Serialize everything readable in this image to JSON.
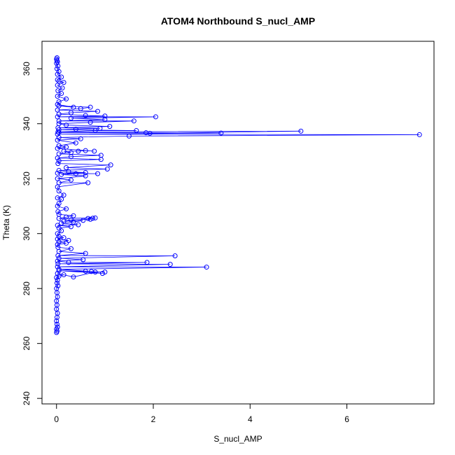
{
  "chart_data": {
    "type": "line",
    "title": "ATOM4 Northbound S_nucl_AMP",
    "xlabel": "S_nucl_AMP",
    "ylabel": "Theta (K)",
    "xlim": [
      -0.3,
      7.8
    ],
    "ylim": [
      238,
      370
    ],
    "x_ticks": [
      0,
      2,
      4,
      6
    ],
    "y_ticks": [
      240,
      260,
      280,
      300,
      320,
      340,
      360
    ],
    "grid": false,
    "legend": "none",
    "marker": "open-circle",
    "color": "#0000ff",
    "series": [
      {
        "points": [
          [
            0.0,
            264.0
          ],
          [
            0.01,
            264.5
          ],
          [
            0.0,
            265.2
          ],
          [
            0.02,
            266.0
          ],
          [
            0.01,
            267.0
          ],
          [
            0.0,
            268.2
          ],
          [
            0.01,
            269.5
          ],
          [
            0.02,
            271.0
          ],
          [
            0.0,
            272.5
          ],
          [
            0.01,
            274.0
          ],
          [
            0.0,
            275.5
          ],
          [
            0.02,
            277.0
          ],
          [
            0.01,
            278.5
          ],
          [
            0.0,
            280.0
          ],
          [
            0.03,
            281.0
          ],
          [
            0.01,
            282.0
          ],
          [
            0.02,
            283.0
          ],
          [
            0.0,
            284.0
          ],
          [
            0.05,
            284.5
          ],
          [
            0.15,
            285.0
          ],
          [
            0.02,
            285.5
          ],
          [
            0.35,
            284.2
          ],
          [
            0.8,
            286.0
          ],
          [
            0.6,
            286.3
          ],
          [
            0.95,
            285.5
          ],
          [
            0.05,
            286.5
          ],
          [
            1.0,
            286.0
          ],
          [
            0.72,
            286.2
          ],
          [
            0.05,
            287.0
          ],
          [
            3.1,
            287.8
          ],
          [
            0.02,
            287.9
          ],
          [
            2.35,
            288.8
          ],
          [
            0.03,
            289.0
          ],
          [
            1.87,
            289.5
          ],
          [
            0.25,
            289.5
          ],
          [
            0.02,
            290.0
          ],
          [
            0.55,
            290.5
          ],
          [
            0.05,
            291.0
          ],
          [
            2.45,
            291.9
          ],
          [
            0.03,
            292.0
          ],
          [
            0.6,
            292.8
          ],
          [
            0.05,
            293.5
          ],
          [
            0.3,
            294.5
          ],
          [
            0.03,
            295.0
          ],
          [
            0.02,
            296.0
          ],
          [
            0.2,
            296.5
          ],
          [
            0.05,
            297.0
          ],
          [
            0.25,
            297.5
          ],
          [
            0.02,
            298.0
          ],
          [
            0.15,
            298.5
          ],
          [
            0.05,
            299.0
          ],
          [
            0.02,
            300.0
          ],
          [
            0.1,
            301.0
          ],
          [
            0.05,
            302.0
          ],
          [
            0.3,
            302.5
          ],
          [
            0.02,
            303.0
          ],
          [
            0.45,
            303.2
          ],
          [
            0.1,
            303.8
          ],
          [
            0.35,
            304.2
          ],
          [
            0.55,
            304.8
          ],
          [
            0.15,
            304.5
          ],
          [
            0.3,
            305.0
          ],
          [
            0.7,
            305.2
          ],
          [
            0.65,
            305.5
          ],
          [
            0.75,
            305.6
          ],
          [
            0.8,
            305.7
          ],
          [
            0.05,
            305.5
          ],
          [
            0.2,
            306.0
          ],
          [
            0.35,
            306.5
          ],
          [
            0.05,
            307.0
          ],
          [
            0.03,
            308.0
          ],
          [
            0.2,
            309.0
          ],
          [
            0.02,
            310.0
          ],
          [
            0.05,
            311.0
          ],
          [
            0.1,
            312.5
          ],
          [
            0.02,
            313.0
          ],
          [
            0.15,
            314.0
          ],
          [
            0.05,
            315.5
          ],
          [
            0.02,
            317.0
          ],
          [
            0.65,
            318.5
          ],
          [
            0.05,
            318.5
          ],
          [
            0.3,
            319.5
          ],
          [
            0.02,
            320.0
          ],
          [
            0.6,
            321.0
          ],
          [
            0.1,
            321.5
          ],
          [
            0.4,
            321.8
          ],
          [
            0.85,
            321.8
          ],
          [
            0.02,
            322.0
          ],
          [
            0.6,
            322.2
          ],
          [
            0.25,
            322.5
          ],
          [
            0.05,
            323.0
          ],
          [
            1.05,
            323.5
          ],
          [
            0.2,
            324.0
          ],
          [
            1.12,
            325.0
          ],
          [
            0.03,
            325.5
          ],
          [
            0.05,
            326.5
          ],
          [
            0.92,
            327.0
          ],
          [
            0.02,
            327.5
          ],
          [
            0.3,
            328.0
          ],
          [
            0.92,
            328.5
          ],
          [
            0.05,
            329.0
          ],
          [
            0.3,
            329.5
          ],
          [
            0.15,
            330.0
          ],
          [
            0.45,
            330.0
          ],
          [
            0.6,
            330.2
          ],
          [
            0.78,
            330.0
          ],
          [
            0.02,
            331.0
          ],
          [
            0.2,
            331.5
          ],
          [
            0.05,
            332.0
          ],
          [
            0.4,
            333.0
          ],
          [
            0.02,
            334.0
          ],
          [
            0.5,
            334.5
          ],
          [
            0.05,
            335.0
          ],
          [
            1.5,
            335.5
          ],
          [
            7.5,
            336.0
          ],
          [
            0.02,
            336.2
          ],
          [
            3.4,
            336.6
          ],
          [
            0.05,
            336.8
          ],
          [
            1.85,
            336.7
          ],
          [
            1.93,
            336.5
          ],
          [
            5.05,
            337.3
          ],
          [
            0.03,
            337.0
          ],
          [
            0.8,
            337.5
          ],
          [
            1.65,
            337.5
          ],
          [
            0.05,
            337.8
          ],
          [
            0.4,
            338.0
          ],
          [
            0.9,
            338.3
          ],
          [
            0.03,
            338.5
          ],
          [
            1.1,
            339.0
          ],
          [
            0.2,
            339.5
          ],
          [
            0.05,
            340.0
          ],
          [
            0.7,
            340.5
          ],
          [
            1.6,
            341.0
          ],
          [
            0.05,
            341.0
          ],
          [
            1.0,
            341.5
          ],
          [
            0.3,
            342.0
          ],
          [
            2.05,
            342.5
          ],
          [
            0.02,
            342.5
          ],
          [
            1.0,
            342.8
          ],
          [
            0.6,
            343.0
          ],
          [
            0.05,
            343.5
          ],
          [
            0.3,
            344.0
          ],
          [
            0.85,
            344.5
          ],
          [
            0.02,
            345.0
          ],
          [
            0.5,
            345.5
          ],
          [
            0.7,
            346.0
          ],
          [
            0.05,
            346.5
          ],
          [
            0.35,
            346.0
          ],
          [
            0.02,
            347.0
          ],
          [
            0.05,
            348.0
          ],
          [
            0.2,
            349.0
          ],
          [
            0.02,
            350.0
          ],
          [
            0.1,
            351.0
          ],
          [
            0.03,
            352.0
          ],
          [
            0.12,
            353.0
          ],
          [
            0.02,
            354.0
          ],
          [
            0.15,
            355.0
          ],
          [
            0.05,
            355.5
          ],
          [
            0.02,
            356.0
          ],
          [
            0.1,
            357.0
          ],
          [
            0.02,
            358.0
          ],
          [
            0.05,
            359.0
          ],
          [
            0.01,
            360.0
          ],
          [
            0.03,
            361.0
          ],
          [
            0.0,
            362.0
          ],
          [
            0.02,
            362.5
          ],
          [
            0.01,
            363.0
          ],
          [
            0.0,
            363.5
          ],
          [
            0.01,
            364.0
          ]
        ]
      }
    ]
  }
}
